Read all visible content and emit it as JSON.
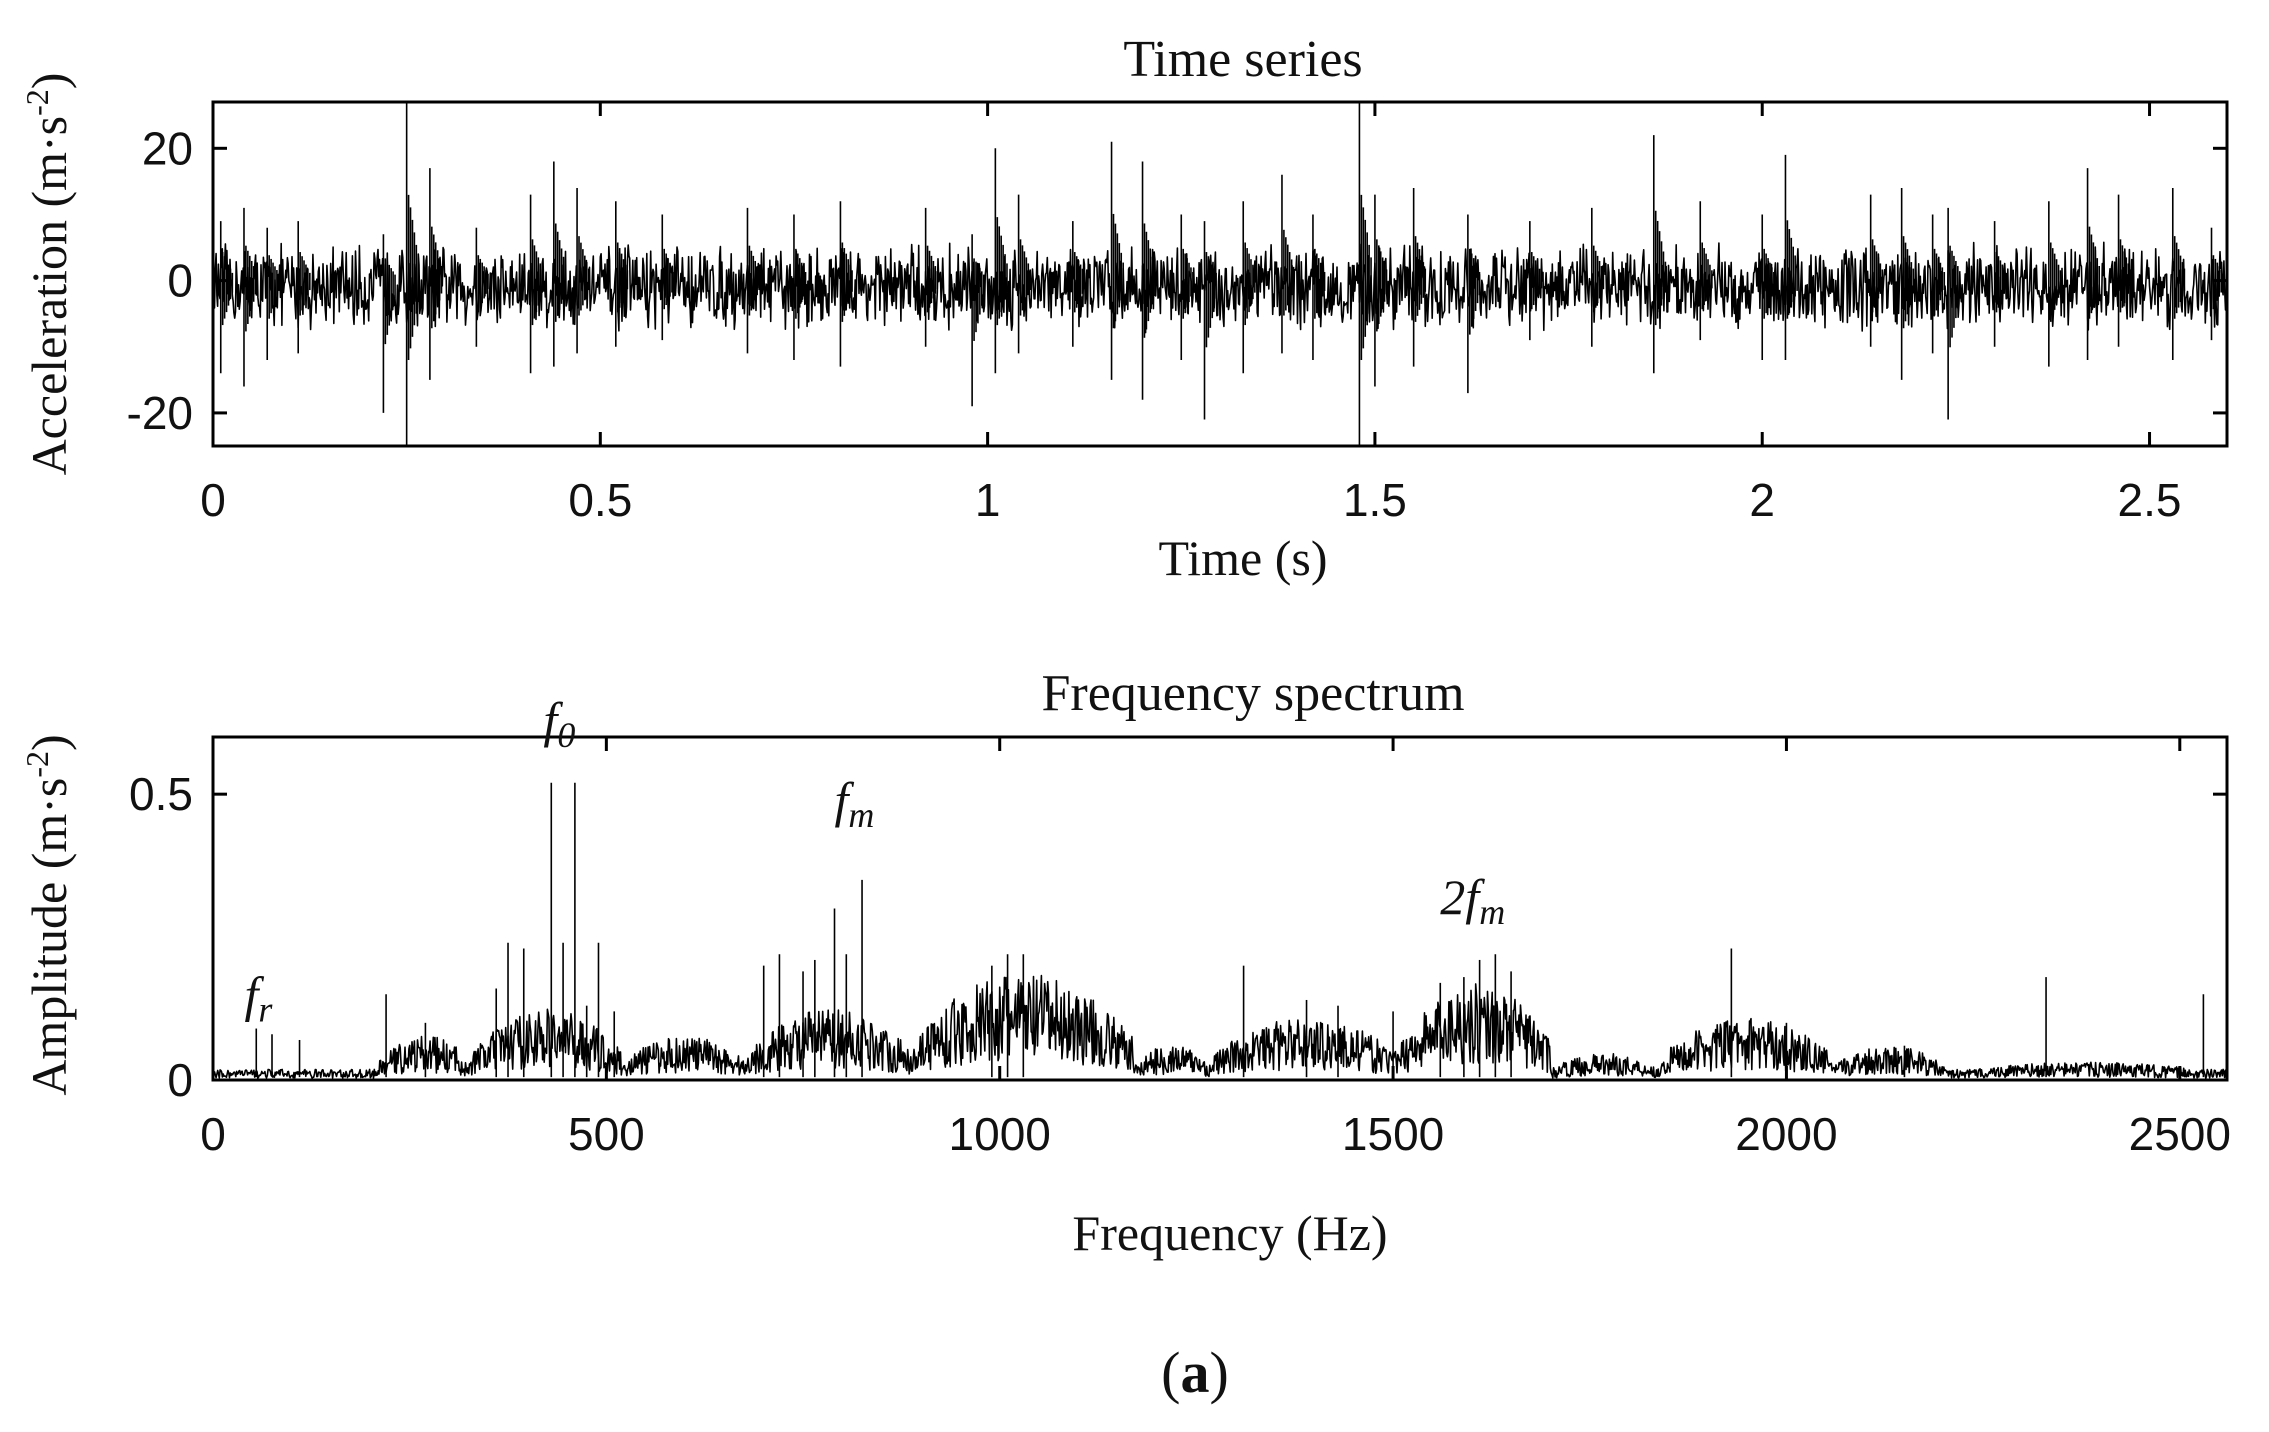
{
  "chart_data": [
    {
      "type": "line",
      "title": "Time series",
      "xlabel": "Time (s)",
      "ylabel": "Acceleration (m·s",
      "ylabel_sup": "-2",
      "ylabel_close": ")",
      "xlim": [
        0,
        2.6
      ],
      "ylim": [
        -25,
        27
      ],
      "xticks": [
        0,
        0.5,
        1,
        1.5,
        2,
        2.5
      ],
      "xtick_labels": [
        "0",
        "0.5",
        "1",
        "1.5",
        "2",
        "2.5"
      ],
      "yticks": [
        20,
        0,
        -20
      ],
      "ytick_labels": [
        "20",
        "0",
        "-20"
      ],
      "series": [
        {
          "name": "acceleration",
          "spikes": [
            [
              0.01,
              9,
              -14
            ],
            [
              0.04,
              11,
              -16
            ],
            [
              0.07,
              8,
              -12
            ],
            [
              0.11,
              9,
              -11
            ],
            [
              0.22,
              7,
              -20
            ],
            [
              0.25,
              27,
              -25
            ],
            [
              0.28,
              17,
              -15
            ],
            [
              0.34,
              8,
              -10
            ],
            [
              0.41,
              13,
              -14
            ],
            [
              0.44,
              18,
              -13
            ],
            [
              0.47,
              14,
              -11
            ],
            [
              0.52,
              12,
              -10
            ],
            [
              0.58,
              10,
              -9
            ],
            [
              0.69,
              11,
              -11
            ],
            [
              0.75,
              10,
              -12
            ],
            [
              0.81,
              12,
              -13
            ],
            [
              0.92,
              11,
              -10
            ],
            [
              0.98,
              7,
              -19
            ],
            [
              1.01,
              20,
              -14
            ],
            [
              1.04,
              13,
              -11
            ],
            [
              1.11,
              9,
              -10
            ],
            [
              1.16,
              21,
              -15
            ],
            [
              1.2,
              18,
              -18
            ],
            [
              1.25,
              10,
              -12
            ],
            [
              1.28,
              9,
              -21
            ],
            [
              1.33,
              12,
              -14
            ],
            [
              1.38,
              16,
              -11
            ],
            [
              1.42,
              10,
              -12
            ],
            [
              1.48,
              27,
              -25
            ],
            [
              1.5,
              13,
              -16
            ],
            [
              1.55,
              14,
              -13
            ],
            [
              1.62,
              10,
              -17
            ],
            [
              1.7,
              9,
              -9
            ],
            [
              1.78,
              11,
              -10
            ],
            [
              1.86,
              22,
              -14
            ],
            [
              1.92,
              12,
              -9
            ],
            [
              2.0,
              10,
              -12
            ],
            [
              2.03,
              19,
              -12
            ],
            [
              2.14,
              13,
              -10
            ],
            [
              2.18,
              14,
              -15
            ],
            [
              2.22,
              10,
              -11
            ],
            [
              2.24,
              11,
              -21
            ],
            [
              2.3,
              9,
              -10
            ],
            [
              2.37,
              12,
              -13
            ],
            [
              2.42,
              17,
              -12
            ],
            [
              2.46,
              13,
              -10
            ],
            [
              2.53,
              14,
              -12
            ],
            [
              2.58,
              8,
              -9
            ]
          ]
        }
      ]
    },
    {
      "type": "line",
      "title": "Frequency spectrum",
      "xlabel": "Frequency (Hz)",
      "ylabel": "Amplitude (m·s",
      "ylabel_sup": "-2",
      "ylabel_close": ")",
      "xlim": [
        0,
        2560
      ],
      "ylim": [
        0,
        0.6
      ],
      "xticks": [
        0,
        500,
        1000,
        1500,
        2000,
        2500
      ],
      "xtick_labels": [
        "0",
        "500",
        "1000",
        "1500",
        "2000",
        "2500"
      ],
      "yticks": [
        0.5,
        0
      ],
      "ytick_labels": [
        "0.5",
        "0"
      ],
      "series": [
        {
          "name": "amplitude",
          "peaks": [
            [
              55,
              0.09
            ],
            [
              75,
              0.08
            ],
            [
              110,
              0.07
            ],
            [
              220,
              0.15
            ],
            [
              270,
              0.1
            ],
            [
              360,
              0.16
            ],
            [
              375,
              0.24
            ],
            [
              395,
              0.23
            ],
            [
              430,
              0.52
            ],
            [
              445,
              0.24
            ],
            [
              460,
              0.52
            ],
            [
              475,
              0.13
            ],
            [
              490,
              0.24
            ],
            [
              510,
              0.12
            ],
            [
              700,
              0.2
            ],
            [
              720,
              0.22
            ],
            [
              750,
              0.19
            ],
            [
              765,
              0.21
            ],
            [
              790,
              0.3
            ],
            [
              805,
              0.22
            ],
            [
              825,
              0.35
            ],
            [
              990,
              0.2
            ],
            [
              1010,
              0.22
            ],
            [
              1030,
              0.22
            ],
            [
              1310,
              0.2
            ],
            [
              1390,
              0.14
            ],
            [
              1430,
              0.13
            ],
            [
              1500,
              0.12
            ],
            [
              1560,
              0.17
            ],
            [
              1590,
              0.18
            ],
            [
              1610,
              0.21
            ],
            [
              1630,
              0.22
            ],
            [
              1650,
              0.19
            ],
            [
              1930,
              0.23
            ],
            [
              2000,
              0.1
            ],
            [
              2150,
              0.06
            ],
            [
              2330,
              0.18
            ],
            [
              2530,
              0.15
            ]
          ],
          "bands": [
            [
              210,
              330,
              0.05
            ],
            [
              330,
              520,
              0.08
            ],
            [
              520,
              680,
              0.05
            ],
            [
              680,
              890,
              0.08
            ],
            [
              890,
              1170,
              0.12
            ],
            [
              1170,
              1270,
              0.04
            ],
            [
              1270,
              1510,
              0.07
            ],
            [
              1510,
              1700,
              0.11
            ],
            [
              1700,
              1840,
              0.03
            ],
            [
              1840,
              2060,
              0.07
            ],
            [
              2060,
              2200,
              0.04
            ],
            [
              2200,
              2560,
              0.02
            ]
          ]
        }
      ],
      "annotations": [
        {
          "text": "f",
          "sub": "r",
          "x": 40,
          "y": 0.12
        },
        {
          "text": "f",
          "sub": "0",
          "x": 420,
          "y": 0.6
        },
        {
          "text": "f",
          "sub": "m",
          "x": 790,
          "y": 0.46
        },
        {
          "text": "2f",
          "sub": "m",
          "x": 1560,
          "y": 0.29
        }
      ]
    }
  ],
  "caption": {
    "open": "(",
    "letter": "a",
    "close": ")"
  }
}
